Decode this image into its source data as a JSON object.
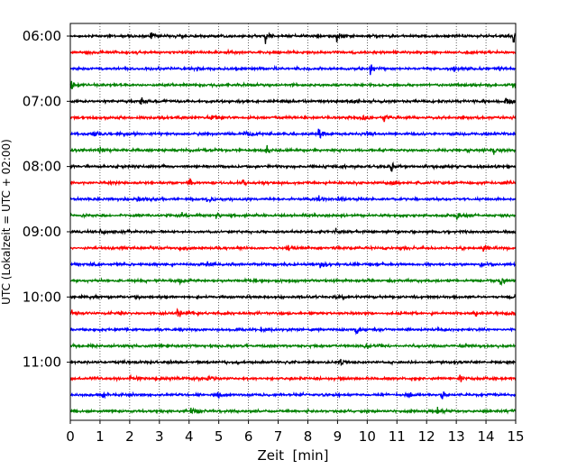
{
  "chart_data": {
    "type": "line",
    "subtype": "helicorder / seismogram trace display",
    "xlabel": "Zeit  [min]",
    "ylabel": "UTC (Lokalzeit = UTC + 02:00)",
    "xlim": [
      0,
      15
    ],
    "xticks": [
      "0",
      "1",
      "2",
      "3",
      "4",
      "5",
      "6",
      "7",
      "8",
      "9",
      "10",
      "11",
      "12",
      "13",
      "14",
      "15"
    ],
    "grid": "vertical dotted lines at each minute",
    "row_minutes": 15,
    "row_labels": [
      {
        "row": 0,
        "label": "06:00"
      },
      {
        "row": 4,
        "label": "07:00"
      },
      {
        "row": 8,
        "label": "08:00"
      },
      {
        "row": 12,
        "label": "09:00"
      },
      {
        "row": 16,
        "label": "10:00"
      },
      {
        "row": 20,
        "label": "11:00"
      }
    ],
    "color_cycle": [
      "#000000",
      "#ff0000",
      "#0000ff",
      "#008000"
    ],
    "rows": [
      {
        "start": "06:00",
        "color": "#000000",
        "events": [
          [
            2.7,
            0.5
          ],
          [
            6.55,
            1.0
          ],
          [
            8.95,
            0.8
          ],
          [
            11.6,
            0.4
          ],
          [
            14.9,
            1.0
          ]
        ]
      },
      {
        "start": "06:15",
        "color": "#ff0000",
        "events": [
          [
            5.2,
            0.3
          ]
        ]
      },
      {
        "start": "06:30",
        "color": "#0000ff",
        "events": [
          [
            4.25,
            0.4
          ],
          [
            10.1,
            0.6
          ],
          [
            12.9,
            0.3
          ],
          [
            14.4,
            0.3
          ]
        ]
      },
      {
        "start": "06:45",
        "color": "#008000",
        "events": [
          [
            0.0,
            0.8
          ],
          [
            6.4,
            0.3
          ],
          [
            14.9,
            0.4
          ]
        ]
      },
      {
        "start": "07:00",
        "color": "#000000",
        "events": [
          [
            2.35,
            0.8
          ],
          [
            7.1,
            0.4
          ],
          [
            9.5,
            0.5
          ],
          [
            14.65,
            0.6
          ]
        ]
      },
      {
        "start": "07:15",
        "color": "#ff0000",
        "events": [
          [
            4.75,
            0.6
          ],
          [
            9.8,
            0.8
          ],
          [
            10.55,
            0.6
          ]
        ]
      },
      {
        "start": "07:30",
        "color": "#0000ff",
        "events": [
          [
            0.75,
            0.4
          ],
          [
            5.85,
            0.4
          ],
          [
            8.35,
            0.8
          ],
          [
            10.0,
            0.4
          ]
        ]
      },
      {
        "start": "07:45",
        "color": "#008000",
        "events": [
          [
            0.95,
            0.5
          ],
          [
            6.6,
            0.6
          ],
          [
            14.25,
            0.4
          ]
        ]
      },
      {
        "start": "08:00",
        "color": "#000000",
        "events": [
          [
            10.8,
            0.9
          ]
        ]
      },
      {
        "start": "08:15",
        "color": "#ff0000",
        "events": [
          [
            4.0,
            0.5
          ],
          [
            5.8,
            0.4
          ],
          [
            10.75,
            0.6
          ],
          [
            12.4,
            0.3
          ]
        ]
      },
      {
        "start": "08:30",
        "color": "#0000ff",
        "events": [
          [
            2.25,
            0.4
          ],
          [
            4.6,
            0.5
          ],
          [
            8.35,
            0.4
          ],
          [
            9.0,
            0.4
          ]
        ]
      },
      {
        "start": "08:45",
        "color": "#008000",
        "events": [
          [
            3.7,
            0.4
          ],
          [
            4.9,
            0.4
          ],
          [
            13.0,
            0.5
          ]
        ]
      },
      {
        "start": "09:00",
        "color": "#000000",
        "events": [
          [
            1.0,
            0.4
          ],
          [
            8.9,
            0.4
          ]
        ]
      },
      {
        "start": "09:15",
        "color": "#ff0000",
        "events": [
          [
            2.7,
            0.4
          ],
          [
            3.7,
            0.4
          ],
          [
            7.3,
            0.3
          ],
          [
            13.9,
            0.4
          ]
        ]
      },
      {
        "start": "09:30",
        "color": "#0000ff",
        "events": [
          [
            0.7,
            0.3
          ],
          [
            4.6,
            0.4
          ],
          [
            8.4,
            0.6
          ],
          [
            13.8,
            0.3
          ]
        ]
      },
      {
        "start": "09:45",
        "color": "#008000",
        "events": [
          [
            3.65,
            0.4
          ],
          [
            14.45,
            0.6
          ]
        ]
      },
      {
        "start": "10:00",
        "color": "#000000",
        "events": [
          [
            8.95,
            0.4
          ],
          [
            14.95,
            0.5
          ]
        ]
      },
      {
        "start": "10:15",
        "color": "#ff0000",
        "events": [
          [
            0.0,
            0.4
          ],
          [
            1.6,
            0.5
          ],
          [
            3.6,
            0.6
          ],
          [
            13.6,
            0.4
          ],
          [
            14.7,
            0.4
          ]
        ]
      },
      {
        "start": "10:30",
        "color": "#0000ff",
        "events": [
          [
            6.4,
            0.4
          ],
          [
            9.6,
            0.6
          ]
        ]
      },
      {
        "start": "10:45",
        "color": "#008000",
        "events": [
          [
            4.9,
            0.4
          ],
          [
            9.9,
            0.4
          ],
          [
            13.1,
            0.3
          ]
        ]
      },
      {
        "start": "11:00",
        "color": "#000000",
        "events": [
          [
            9.05,
            0.6
          ]
        ]
      },
      {
        "start": "11:15",
        "color": "#ff0000",
        "events": [
          [
            2.0,
            0.5
          ],
          [
            4.6,
            0.5
          ],
          [
            13.1,
            0.5
          ]
        ]
      },
      {
        "start": "11:30",
        "color": "#0000ff",
        "events": [
          [
            1.1,
            0.4
          ],
          [
            4.95,
            0.5
          ],
          [
            11.35,
            0.5
          ],
          [
            12.5,
            0.4
          ]
        ]
      },
      {
        "start": "11:45",
        "color": "#008000",
        "events": [
          [
            4.05,
            0.6
          ],
          [
            12.35,
            0.5
          ]
        ]
      }
    ]
  }
}
